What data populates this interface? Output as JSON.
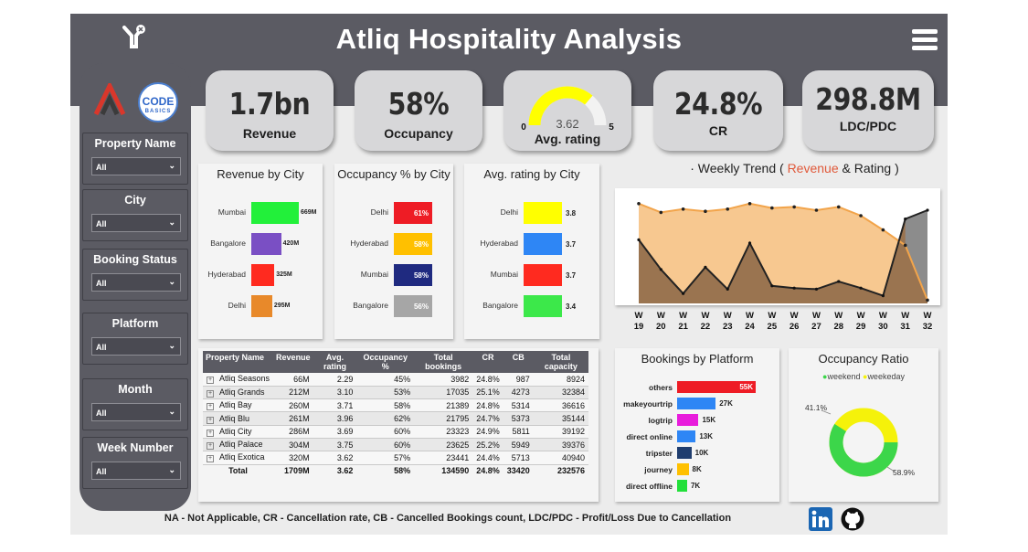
{
  "header": {
    "title": "Atliq Hospitality Analysis"
  },
  "sidebar": {
    "logo_text": "CODE",
    "logo_sub": "BASICS",
    "slicers": [
      {
        "label": "Property Name",
        "value": "All"
      },
      {
        "label": "City",
        "value": "All"
      },
      {
        "label": "Booking Status",
        "value": "All"
      },
      {
        "label": "Platform",
        "value": "All"
      },
      {
        "label": "Month",
        "value": "All"
      },
      {
        "label": "Week Number",
        "value": "All"
      }
    ]
  },
  "kpis": {
    "revenue": {
      "value": "1.7bn",
      "label": "Revenue"
    },
    "occupancy": {
      "value": "58%",
      "label": "Occupancy"
    },
    "rating": {
      "value": "3.62",
      "min": "0",
      "max": "5",
      "label": "Avg. rating",
      "gauge_fraction": 0.724
    },
    "cr": {
      "value": "24.8%",
      "label": "CR"
    },
    "ldc": {
      "value": "298.8M",
      "label": "LDC/PDC"
    }
  },
  "revenue_by_city": {
    "title": "Revenue by City",
    "rows": [
      {
        "city": "Mumbai",
        "label": "669M",
        "value": 669,
        "color": "#22f03a"
      },
      {
        "city": "Bangalore",
        "label": "420M",
        "value": 420,
        "color": "#7a4fc4"
      },
      {
        "city": "Hyderabad",
        "label": "325M",
        "value": 325,
        "color": "#ff2a1f"
      },
      {
        "city": "Delhi",
        "label": "295M",
        "value": 295,
        "color": "#e8892a"
      }
    ]
  },
  "occupancy_by_city": {
    "title": "Occupancy % by City",
    "rows": [
      {
        "city": "Delhi",
        "label": "61%",
        "color": "#ee1c25"
      },
      {
        "city": "Hyderabad",
        "label": "58%",
        "color": "#ffc000"
      },
      {
        "city": "Mumbai",
        "label": "58%",
        "color": "#1f2a80"
      },
      {
        "city": "Bangalore",
        "label": "56%",
        "color": "#a6a6a6"
      }
    ]
  },
  "rating_by_city": {
    "title": "Avg. rating by City",
    "rows": [
      {
        "city": "Delhi",
        "label": "3.8",
        "color": "#ffff00"
      },
      {
        "city": "Hyderabad",
        "label": "3.7",
        "color": "#2e86f5"
      },
      {
        "city": "Mumbai",
        "label": "3.7",
        "color": "#ff2a1f"
      },
      {
        "city": "Bangalore",
        "label": "3.4",
        "color": "#3ce84a"
      }
    ]
  },
  "weekly_trend": {
    "title_prefix": "· Weekly Trend ( ",
    "title_revenue": "Revenue",
    "title_mid": " & ",
    "title_rating": "Rating",
    "title_suffix": " )"
  },
  "chart_data": {
    "type": "area",
    "title": "Weekly Trend ( Revenue & Rating )",
    "x": [
      "W 19",
      "W 20",
      "W 21",
      "W 22",
      "W 23",
      "W 24",
      "W 25",
      "W 26",
      "W 27",
      "W 28",
      "W 29",
      "W 30",
      "W 31",
      "W 32"
    ],
    "series": [
      {
        "name": "Revenue",
        "color": "#f2a44a",
        "values": [
          0.91,
          0.83,
          0.86,
          0.84,
          0.86,
          0.91,
          0.87,
          0.88,
          0.85,
          0.88,
          0.8,
          0.67,
          0.53,
          0.03
        ]
      },
      {
        "name": "Rating",
        "color": "#222222",
        "values": [
          0.58,
          0.31,
          0.09,
          0.33,
          0.13,
          0.55,
          0.16,
          0.14,
          0.13,
          0.2,
          0.14,
          0.07,
          0.77,
          0.85
        ]
      }
    ],
    "ylim": [
      0,
      1
    ],
    "grid": false
  },
  "property_table": {
    "headers": [
      "Property Name",
      "Revenue",
      "Avg. rating",
      "Occupancy %",
      "Total bookings",
      "CR",
      "CB",
      "Total capacity"
    ],
    "rows": [
      [
        "Atliq Seasons",
        "66M",
        "2.29",
        "45%",
        "3982",
        "24.8%",
        "987",
        "8924"
      ],
      [
        "Atliq Grands",
        "212M",
        "3.10",
        "53%",
        "17035",
        "25.1%",
        "4273",
        "32384"
      ],
      [
        "Atliq Bay",
        "260M",
        "3.71",
        "58%",
        "21389",
        "24.8%",
        "5314",
        "36616"
      ],
      [
        "Atliq Blu",
        "261M",
        "3.96",
        "62%",
        "21795",
        "24.7%",
        "5373",
        "35144"
      ],
      [
        "Atliq City",
        "286M",
        "3.69",
        "60%",
        "23323",
        "24.9%",
        "5811",
        "39192"
      ],
      [
        "Atliq Palace",
        "304M",
        "3.75",
        "60%",
        "23625",
        "25.2%",
        "5949",
        "39376"
      ],
      [
        "Atliq Exotica",
        "320M",
        "3.62",
        "57%",
        "23441",
        "24.4%",
        "5713",
        "40940"
      ]
    ],
    "total": [
      "Total",
      "1709M",
      "3.62",
      "58%",
      "134590",
      "24.8%",
      "33420",
      "232576"
    ]
  },
  "bookings_by_platform": {
    "title": "Bookings by Platform",
    "rows": [
      {
        "platform": "others",
        "label": "55K",
        "value": 55,
        "color": "#ee1c25"
      },
      {
        "platform": "makeyourtrip",
        "label": "27K",
        "value": 27,
        "color": "#2e86f5"
      },
      {
        "platform": "logtrip",
        "label": "15K",
        "value": 15,
        "color": "#e81cdc"
      },
      {
        "platform": "direct online",
        "label": "13K",
        "value": 13,
        "color": "#2e86f5"
      },
      {
        "platform": "tripster",
        "label": "10K",
        "value": 10,
        "color": "#1f3d6e"
      },
      {
        "platform": "journey",
        "label": "8K",
        "value": 8,
        "color": "#ffc000"
      },
      {
        "platform": "direct offline",
        "label": "7K",
        "value": 7,
        "color": "#22e03a"
      }
    ]
  },
  "occupancy_ratio": {
    "title": "Occupancy Ratio",
    "legend": [
      {
        "name": "weekend",
        "color": "#3cd64a"
      },
      {
        "name": "weekeday",
        "color": "#f5f20a"
      }
    ],
    "weekend_label": "58.9%",
    "weekday_label": "41.1%",
    "weekend_fraction": 0.589
  },
  "footnote": "NA - Not Applicable, CR - Cancellation rate, CB - Cancelled Bookings count, LDC/PDC - Profit/Loss Due to Cancellation"
}
